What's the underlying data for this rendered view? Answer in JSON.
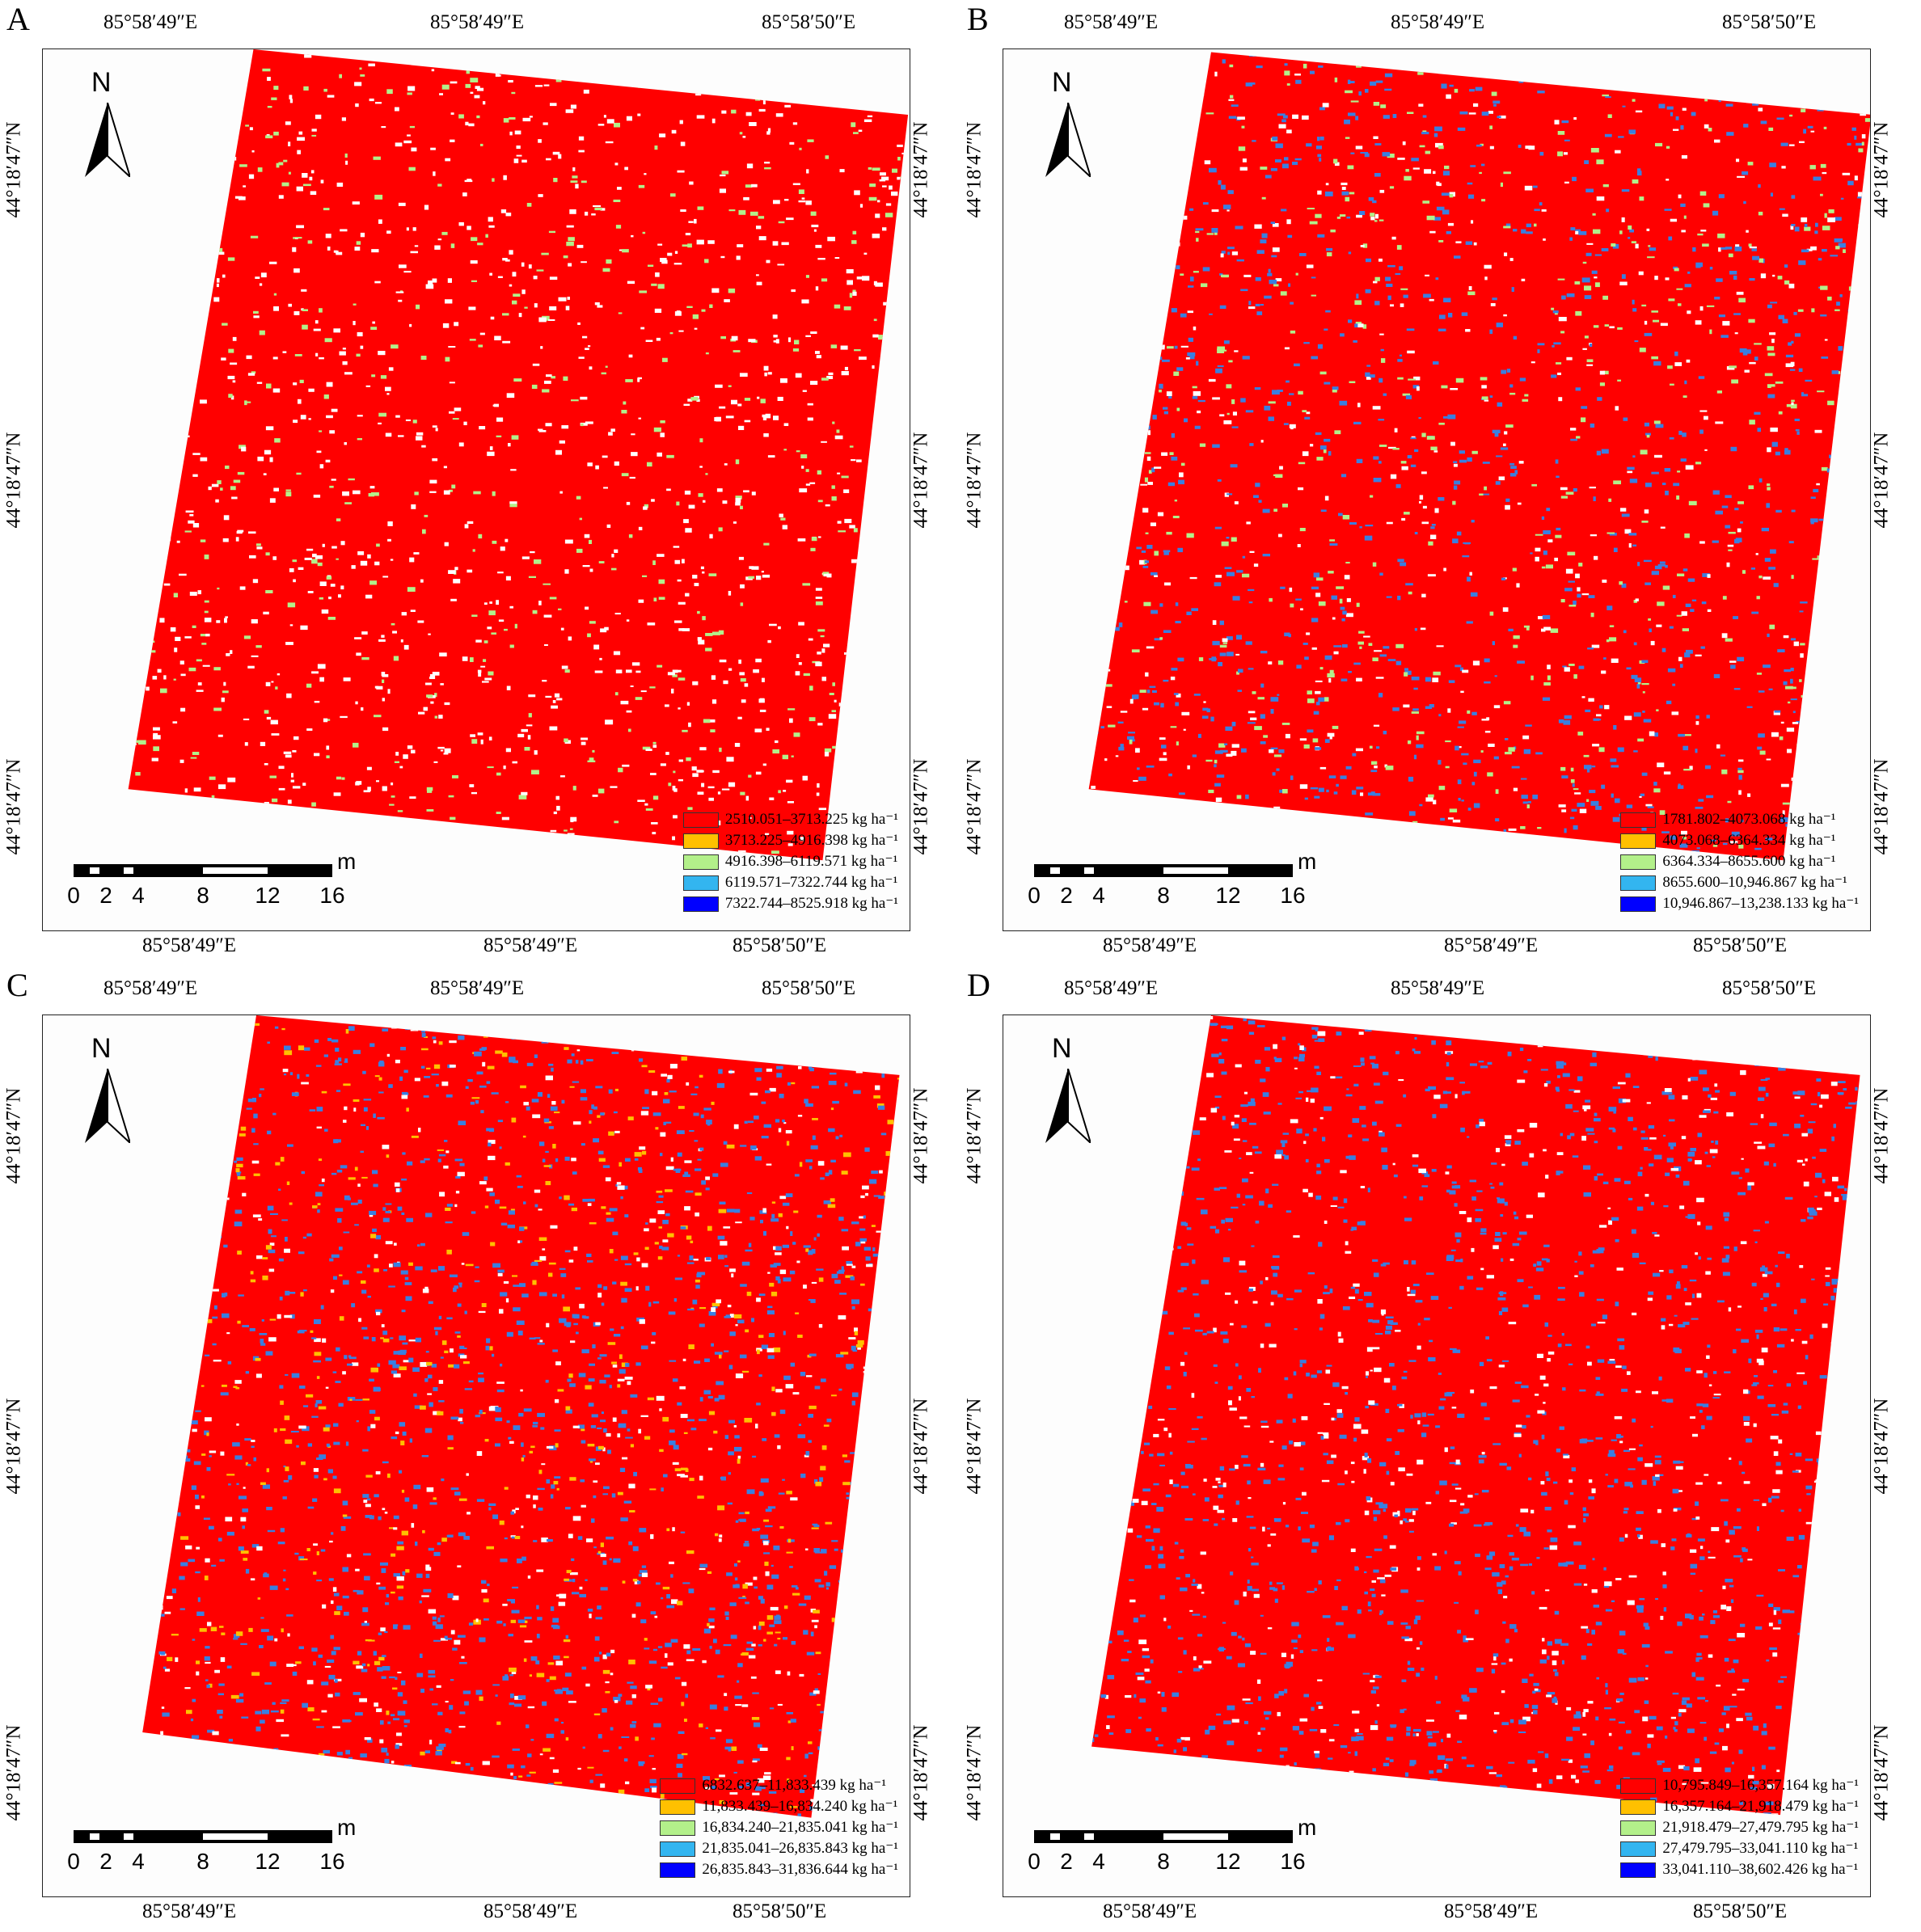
{
  "panels": [
    {
      "id": "A",
      "label": "A",
      "top_labels": [
        "85°58′49″E",
        "85°58′49″E",
        "85°58′50″E"
      ],
      "bottom_labels": [
        "85°58′49″E",
        "85°58′49″E",
        "85°58′50″E"
      ],
      "left_labels": [
        "44°18′47″N",
        "44°18′47″N",
        "44°18′47″N"
      ],
      "right_labels": [
        "44°18′47″N",
        "44°18′47″N",
        "44°18′47″N"
      ],
      "legend": [
        {
          "label": "2510.051–3713.225 kg ha⁻¹",
          "color": "#ff0000"
        },
        {
          "label": "3713.225–4916.398 kg ha⁻¹",
          "color": "#ffc000"
        },
        {
          "label": "4916.398–6119.571 kg ha⁻¹",
          "color": "#b3f08a"
        },
        {
          "label": "6119.571–7322.744 kg ha⁻¹",
          "color": "#33b5f0"
        },
        {
          "label": "7322.744–8525.918 kg ha⁻¹",
          "color": "#0000ff"
        }
      ],
      "dominant_colors": [
        "#ff0000",
        "#ff0000",
        "#ff0000",
        "#ff0000",
        "#ff0000",
        "#ff0000",
        "#b3f08a",
        "#ffffff",
        "#ffffff"
      ]
    },
    {
      "id": "B",
      "label": "B",
      "top_labels": [
        "85°58′49″E",
        "85°58′49″E",
        "85°58′50″E"
      ],
      "bottom_labels": [
        "85°58′49″E",
        "85°58′49″E",
        "85°58′50″E"
      ],
      "left_labels": [
        "44°18′47″N",
        "44°18′47″N",
        "44°18′47″N"
      ],
      "right_labels": [
        "44°18′47″N",
        "44°18′47″N",
        "44°18′47″N"
      ],
      "legend": [
        {
          "label": "1781.802–4073.068 kg ha⁻¹",
          "color": "#ff0000"
        },
        {
          "label": "4073.068–6364.334 kg ha⁻¹",
          "color": "#ffc000"
        },
        {
          "label": "6364.334–8655.600 kg ha⁻¹",
          "color": "#b3f08a"
        },
        {
          "label": "8655.600–10,946.867 kg ha⁻¹",
          "color": "#33b5f0"
        },
        {
          "label": "10,946.867–13,238.133 kg ha⁻¹",
          "color": "#0000ff"
        }
      ],
      "dominant_colors": [
        "#ff0000",
        "#ff0000",
        "#ff0000",
        "#ff0000",
        "#ff0000",
        "#3a7fe0",
        "#3a7fe0",
        "#b3f08a",
        "#ffffff"
      ]
    },
    {
      "id": "C",
      "label": "C",
      "top_labels": [
        "85°58′49″E",
        "85°58′49″E",
        "85°58′50″E"
      ],
      "bottom_labels": [
        "85°58′49″E",
        "85°58′49″E",
        "85°58′50″E"
      ],
      "left_labels": [
        "44°18′47″N",
        "44°18′47″N",
        "44°18′47″N"
      ],
      "right_labels": [
        "44°18′47″N",
        "44°18′47″N",
        "44°18′47″N"
      ],
      "legend": [
        {
          "label": "6832.637–11,833.439 kg ha⁻¹",
          "color": "#ff0000"
        },
        {
          "label": "11,833.439–16,834.240 kg ha⁻¹",
          "color": "#ffc000"
        },
        {
          "label": "16,834.240–21,835.041 kg ha⁻¹",
          "color": "#b3f08a"
        },
        {
          "label": "21,835.041–26,835.843 kg ha⁻¹",
          "color": "#33b5f0"
        },
        {
          "label": "26,835.843–31,836.644 kg ha⁻¹",
          "color": "#0000ff"
        }
      ],
      "dominant_colors": [
        "#ff0000",
        "#ff0000",
        "#ff0000",
        "#ff0000",
        "#3a7fe0",
        "#3a7fe0",
        "#3a7fe0",
        "#ffc000",
        "#ffffff"
      ]
    },
    {
      "id": "D",
      "label": "D",
      "top_labels": [
        "85°58′49″E",
        "85°58′49″E",
        "85°58′50″E"
      ],
      "bottom_labels": [
        "85°58′49″E",
        "85°58′49″E",
        "85°58′50″E"
      ],
      "left_labels": [
        "44°18′47″N",
        "44°18′47″N",
        "44°18′47″N"
      ],
      "right_labels": [
        "44°18′47″N",
        "44°18′47″N",
        "44°18′47″N"
      ],
      "legend": [
        {
          "label": "10,795.849–16,357.164 kg ha⁻¹",
          "color": "#ff0000"
        },
        {
          "label": "16,357.164–21,918.479 kg ha⁻¹",
          "color": "#ffc000"
        },
        {
          "label": "21,918.479–27,479.795 kg ha⁻¹",
          "color": "#b3f08a"
        },
        {
          "label": "27,479.795–33,041.110 kg ha⁻¹",
          "color": "#33b5f0"
        },
        {
          "label": "33,041.110–38,602.426 kg ha⁻¹",
          "color": "#0000ff"
        }
      ],
      "dominant_colors": [
        "#ff0000",
        "#ff0000",
        "#ff0000",
        "#ff0000",
        "#ff0000",
        "#3a7fe0",
        "#3a7fe0",
        "#3a7fe0",
        "#ffffff"
      ]
    }
  ],
  "north_label": "N",
  "scale": {
    "unit": "m",
    "ticks": [
      "0",
      "2",
      "4",
      "8",
      "12",
      "16"
    ]
  }
}
